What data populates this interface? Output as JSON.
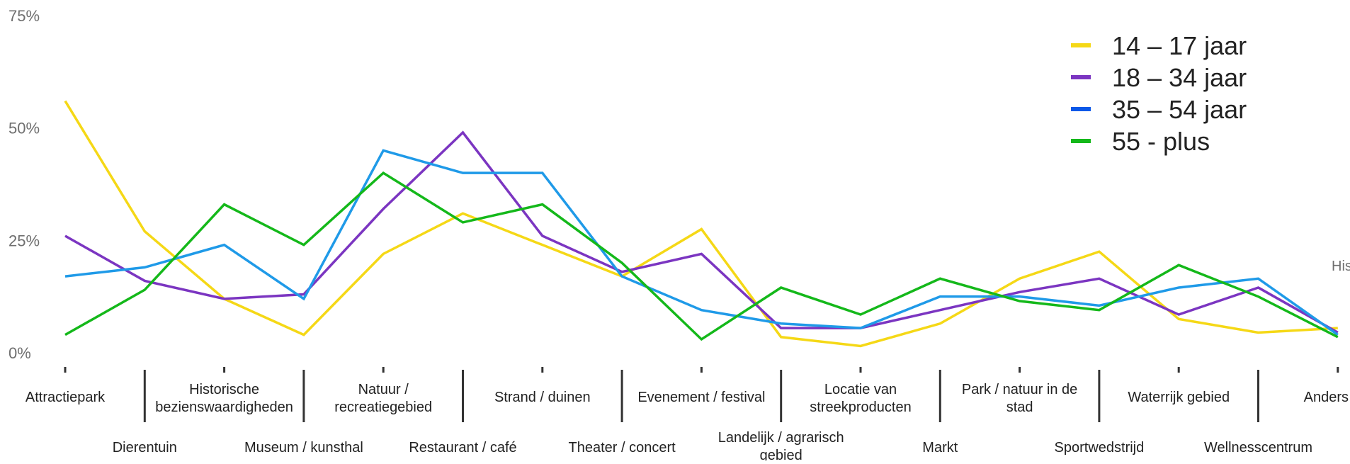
{
  "chart_data": {
    "type": "line",
    "title": "",
    "xlabel": "",
    "ylabel": "",
    "ylim": [
      0,
      75
    ],
    "yticks": [
      "0%",
      "25%",
      "50%",
      "75%"
    ],
    "grid": false,
    "legend_position": "top-right",
    "edge_text": "His",
    "categories": [
      "Attractiepark",
      "Dierentuin",
      "Historische bezienswaardigheden",
      "Museum / kunsthal",
      "Natuur / recreatiegebied",
      "Restaurant / café",
      "Strand / duinen",
      "Theater / concert",
      "Evenement / festival",
      "Landelijk / agrarisch gebied",
      "Locatie van streekproducten",
      "Markt",
      "Park / natuur in de stad",
      "Sportwedstrijd",
      "Waterrijk gebied",
      "Wellnesscentrum",
      "Anders"
    ],
    "series": [
      {
        "name": "14 – 17 jaar",
        "color": "#f5d816",
        "values": [
          56,
          27,
          12,
          4,
          22,
          31,
          24,
          17,
          27.5,
          3.5,
          1.5,
          6.5,
          16.5,
          22.5,
          7.5,
          4.5,
          5.5
        ]
      },
      {
        "name": "18 – 34 jaar",
        "color": "#7b35c1",
        "values": [
          26,
          16,
          12,
          13,
          32,
          49,
          26,
          18,
          22,
          5.5,
          5.5,
          9.5,
          13.5,
          16.5,
          8.5,
          14.5,
          4.5
        ]
      },
      {
        "name": "35 – 54 jaar",
        "color": "#1f9ae8",
        "values": [
          17,
          19,
          24,
          12,
          45,
          40,
          40,
          17,
          9.5,
          6.5,
          5.5,
          12.5,
          12.5,
          10.5,
          14.5,
          16.5,
          4
        ]
      },
      {
        "name": "55 - plus",
        "color": "#14b81a",
        "values": [
          4,
          14,
          33,
          24,
          40,
          29,
          33,
          20,
          3,
          14.5,
          8.5,
          16.5,
          11.5,
          9.5,
          19.5,
          12.5,
          3.5
        ]
      }
    ],
    "legend_swatch_colors": [
      "#f5d816",
      "#7b35c1",
      "#0a58e8",
      "#14b81a"
    ]
  }
}
